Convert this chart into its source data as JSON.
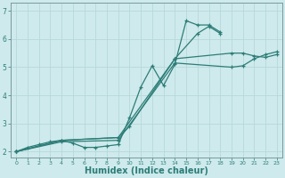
{
  "title": "",
  "xlabel": "Humidex (Indice chaleur)",
  "ylabel": "",
  "bg_color": "#ceeaec",
  "line_color": "#2d7d78",
  "grid_color": "#b8d8da",
  "axis_color": "#7a9a9c",
  "xlim": [
    -0.5,
    23.5
  ],
  "ylim": [
    1.8,
    7.3
  ],
  "xticks": [
    0,
    1,
    2,
    3,
    4,
    5,
    6,
    7,
    8,
    9,
    10,
    11,
    12,
    13,
    14,
    15,
    16,
    17,
    18,
    19,
    20,
    21,
    22,
    23
  ],
  "yticks": [
    2,
    3,
    4,
    5,
    6,
    7
  ],
  "lines": [
    {
      "x": [
        0,
        1,
        2,
        3,
        4,
        5,
        6,
        7,
        8,
        9,
        10,
        11,
        12,
        13,
        14,
        15,
        16,
        17,
        18
      ],
      "y": [
        2.0,
        2.15,
        2.25,
        2.35,
        2.4,
        2.3,
        2.15,
        2.15,
        2.2,
        2.25,
        3.2,
        4.3,
        5.05,
        4.35,
        5.1,
        6.65,
        6.5,
        6.5,
        6.25
      ]
    },
    {
      "x": [
        0,
        4,
        9,
        10,
        14,
        16,
        17,
        18
      ],
      "y": [
        2.0,
        2.4,
        2.5,
        2.9,
        5.3,
        6.2,
        6.45,
        6.2
      ]
    },
    {
      "x": [
        0,
        4,
        9,
        14,
        19,
        20,
        21,
        22,
        23
      ],
      "y": [
        2.0,
        2.4,
        2.5,
        5.3,
        5.5,
        5.5,
        5.4,
        5.35,
        5.45
      ]
    },
    {
      "x": [
        0,
        4,
        9,
        14,
        19,
        20,
        21,
        22,
        23
      ],
      "y": [
        2.0,
        2.35,
        2.4,
        5.15,
        5.0,
        5.05,
        5.3,
        5.45,
        5.55
      ]
    }
  ]
}
